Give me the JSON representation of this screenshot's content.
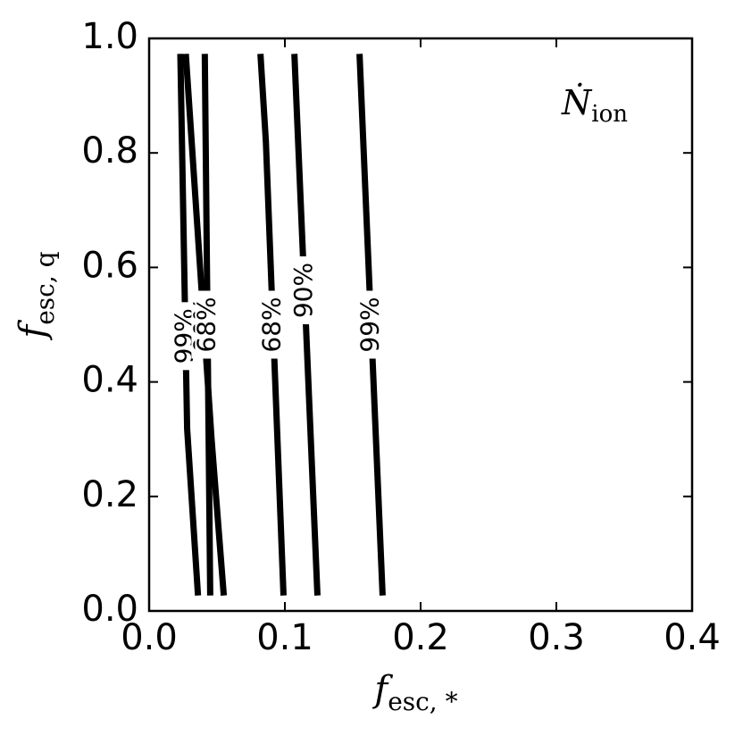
{
  "chart_data": {
    "type": "contour",
    "xlabel": {
      "main": "f",
      "sub": "esc, *"
    },
    "ylabel": {
      "main": "f",
      "sub": "esc, q"
    },
    "annotation": {
      "main": "Ṅ",
      "sub": "ion"
    },
    "xlim": [
      0,
      0.4
    ],
    "ylim": [
      0,
      1
    ],
    "xticks": [
      {
        "value": 0,
        "label": "0.0"
      },
      {
        "value": 0.1,
        "label": "0.1"
      },
      {
        "value": 0.2,
        "label": "0.2"
      },
      {
        "value": 0.3,
        "label": "0.3"
      },
      {
        "value": 0.4,
        "label": "0.4"
      }
    ],
    "yticks": [
      {
        "value": 0,
        "label": "0.0"
      },
      {
        "value": 0.2,
        "label": "0.2"
      },
      {
        "value": 0.4,
        "label": "0.4"
      },
      {
        "value": 0.6,
        "label": "0.6"
      },
      {
        "value": 0.8,
        "label": "0.8"
      },
      {
        "value": 1,
        "label": "1.0"
      }
    ],
    "series": [
      {
        "name": "99%",
        "color": "#000000",
        "x": [
          0.023,
          0.028,
          0.036
        ],
        "y": [
          0.973,
          0.318,
          0.027
        ]
      },
      {
        "name": "90%",
        "color": "#000000",
        "x": [
          0.027,
          0.046,
          0.055
        ],
        "y": [
          0.973,
          0.3,
          0.027
        ]
      },
      {
        "name": "68%",
        "color": "#000000",
        "x": [
          0.041,
          0.045
        ],
        "y": [
          0.973,
          0.027
        ]
      },
      {
        "name": "68%",
        "color": "#000000",
        "x": [
          0.082,
          0.086,
          0.099
        ],
        "y": [
          0.973,
          0.82,
          0.027
        ]
      },
      {
        "name": "90%",
        "color": "#000000",
        "x": [
          0.107,
          0.124
        ],
        "y": [
          0.973,
          0.027
        ]
      },
      {
        "name": "99%",
        "color": "#000000",
        "x": [
          0.155,
          0.172
        ],
        "y": [
          0.973,
          0.027
        ]
      }
    ]
  }
}
